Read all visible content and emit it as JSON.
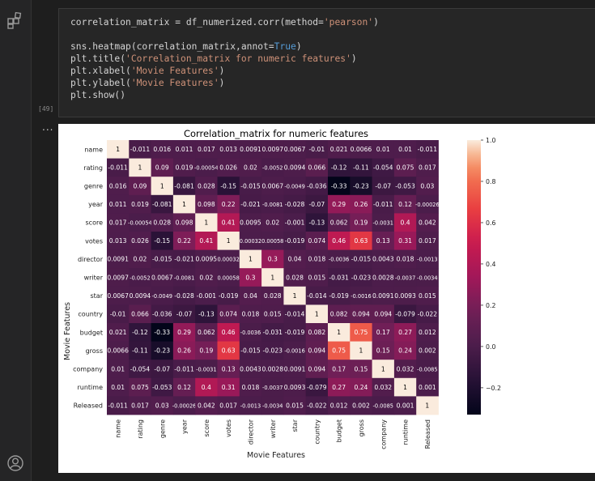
{
  "cell": {
    "execution_count": "[49]",
    "code_lines": [
      [
        {
          "t": "correlation_matrix = df_numerized.corr(method="
        },
        {
          "t": "'pearson'",
          "c": "str"
        },
        {
          "t": ")"
        }
      ],
      [],
      [
        {
          "t": "sns.heatmap(correlation_matrix,annot="
        },
        {
          "t": "True",
          "c": "kw"
        },
        {
          "t": ")"
        }
      ],
      [
        {
          "t": "plt.title("
        },
        {
          "t": "'Correlation_matrix for numeric features'",
          "c": "str"
        },
        {
          "t": ")"
        }
      ],
      [
        {
          "t": "plt.xlabel("
        },
        {
          "t": "'Movie Features'",
          "c": "str"
        },
        {
          "t": ")"
        }
      ],
      [
        {
          "t": "plt.ylabel("
        },
        {
          "t": "'Movie Features'",
          "c": "str"
        },
        {
          "t": ")"
        }
      ],
      [
        {
          "t": "plt.show()"
        }
      ]
    ]
  },
  "output_menu": "...",
  "chart_data": {
    "type": "heatmap",
    "title": "Correlation_matrix for numeric features",
    "xlabel": "Movie Features",
    "ylabel": "Movie Features",
    "labels": [
      "name",
      "rating",
      "genre",
      "year",
      "score",
      "votes",
      "director",
      "writer",
      "star",
      "country",
      "budget",
      "gross",
      "company",
      "runtime",
      "Released"
    ],
    "annotations": [
      [
        "1",
        "-0.011",
        "0.016",
        "0.011",
        "0.017",
        "0.013",
        "0.0091",
        "0.0097",
        "0.0067",
        "-0.01",
        "0.021",
        "0.0066",
        "0.01",
        "0.01",
        "-0.011"
      ],
      [
        "-0.011",
        "1",
        "0.09",
        "0.019",
        "-0.00054",
        "0.026",
        "0.02",
        "-0.0052",
        "0.0094",
        "0.066",
        "-0.12",
        "-0.11",
        "-0.054",
        "0.075",
        "0.017"
      ],
      [
        "0.016",
        "0.09",
        "1",
        "-0.081",
        "0.028",
        "-0.15",
        "-0.015",
        "0.0067",
        "-0.0049",
        "-0.036",
        "-0.33",
        "-0.23",
        "-0.07",
        "-0.053",
        "0.03"
      ],
      [
        "0.011",
        "0.019",
        "-0.081",
        "1",
        "0.098",
        "0.22",
        "-0.021",
        "-0.0081",
        "-0.028",
        "-0.07",
        "0.29",
        "0.26",
        "-0.011",
        "0.12",
        "-0.00026"
      ],
      [
        "0.017",
        "-0.00054",
        "0.028",
        "0.098",
        "1",
        "0.41",
        "0.0095",
        "0.02",
        "-0.001",
        "-0.13",
        "0.062",
        "0.19",
        "-0.0031",
        "0.4",
        "0.042"
      ],
      [
        "0.013",
        "0.026",
        "-0.15",
        "0.22",
        "0.41",
        "1",
        "0.00032",
        "0.00058",
        "-0.019",
        "0.074",
        "0.46",
        "0.63",
        "0.13",
        "0.31",
        "0.017"
      ],
      [
        "0.0091",
        "0.02",
        "-0.015",
        "-0.021",
        "0.0095",
        "0.00032",
        "1",
        "0.3",
        "0.04",
        "0.018",
        "-0.0036",
        "-0.015",
        "0.0043",
        "0.018",
        "-0.0013"
      ],
      [
        "0.0097",
        "-0.0052",
        "0.0067",
        "-0.0081",
        "0.02",
        "0.00058",
        "0.3",
        "1",
        "0.028",
        "0.015",
        "-0.031",
        "-0.023",
        "0.0028",
        "-0.0037",
        "-0.0034"
      ],
      [
        "0.0067",
        "0.0094",
        "-0.0049",
        "-0.028",
        "-0.001",
        "-0.019",
        "0.04",
        "0.028",
        "1",
        "-0.014",
        "-0.019",
        "-0.0016",
        "0.0091",
        "0.0093",
        "0.015"
      ],
      [
        "-0.01",
        "0.066",
        "-0.036",
        "-0.07",
        "-0.13",
        "0.074",
        "0.018",
        "0.015",
        "-0.014",
        "1",
        "0.082",
        "0.094",
        "0.094",
        "-0.079",
        "-0.022"
      ],
      [
        "0.021",
        "-0.12",
        "-0.33",
        "0.29",
        "0.062",
        "0.46",
        "-0.0036",
        "-0.031",
        "-0.019",
        "0.082",
        "1",
        "0.75",
        "0.17",
        "0.27",
        "0.012"
      ],
      [
        "0.0066",
        "-0.11",
        "-0.23",
        "0.26",
        "0.19",
        "0.63",
        "-0.015",
        "-0.023",
        "-0.0016",
        "0.094",
        "0.75",
        "1",
        "0.15",
        "0.24",
        "0.002"
      ],
      [
        "0.01",
        "-0.054",
        "-0.07",
        "-0.011",
        "-0.0031",
        "0.13",
        "0.0043",
        "0.0028",
        "0.0091",
        "0.094",
        "0.17",
        "0.15",
        "1",
        "0.032",
        "-0.0085"
      ],
      [
        "0.01",
        "0.075",
        "-0.053",
        "0.12",
        "0.4",
        "0.31",
        "0.018",
        "-0.0037",
        "0.0093",
        "-0.079",
        "0.27",
        "0.24",
        "0.032",
        "1",
        "0.001"
      ],
      [
        "-0.011",
        "0.017",
        "0.03",
        "-0.00026",
        "0.042",
        "0.017",
        "-0.0013",
        "-0.0034",
        "0.015",
        "-0.022",
        "0.012",
        "0.002",
        "-0.0085",
        "0.001",
        "1"
      ]
    ],
    "colorbar": {
      "vmin": -0.33,
      "vmax": 1.0,
      "ticks": [
        1.0,
        0.8,
        0.6,
        0.4,
        0.2,
        0.0,
        -0.2
      ],
      "tick_labels": [
        "1.0",
        "0.8",
        "0.6",
        "0.4",
        "0.2",
        "0.0",
        "−0.2"
      ],
      "colormap": "rocket"
    }
  }
}
